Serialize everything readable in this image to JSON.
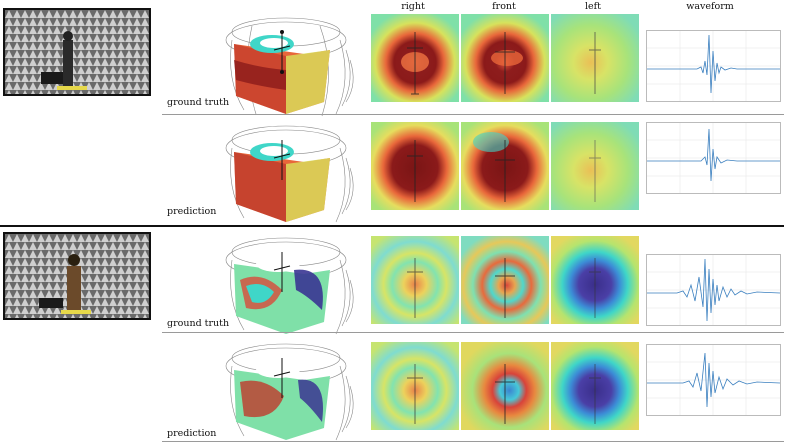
{
  "columns": [
    "right",
    "front",
    "left",
    "waveform"
  ],
  "groups": [
    {
      "id": "subject-1",
      "photo_icon": "anechoic-room-photo",
      "rows": [
        {
          "label": "ground truth",
          "maps": [
            "red-ring",
            "red-ring",
            "green-faint"
          ]
        },
        {
          "label": "prediction",
          "maps": [
            "red-blob",
            "red-blob",
            "green-faint"
          ]
        }
      ]
    },
    {
      "id": "subject-2",
      "photo_icon": "anechoic-room-photo",
      "rows": [
        {
          "label": "ground truth",
          "maps": [
            "rings-faint",
            "rings-mixed",
            "blue-blob"
          ]
        },
        {
          "label": "prediction",
          "maps": [
            "rings-faint",
            "red-blue",
            "blue-blob"
          ]
        }
      ]
    }
  ],
  "colors": {
    "hot": "#8b1a1a",
    "warm": "#e8663a",
    "mid": "#c8e36a",
    "cool": "#3fd6c8",
    "cold": "#3a3592"
  }
}
